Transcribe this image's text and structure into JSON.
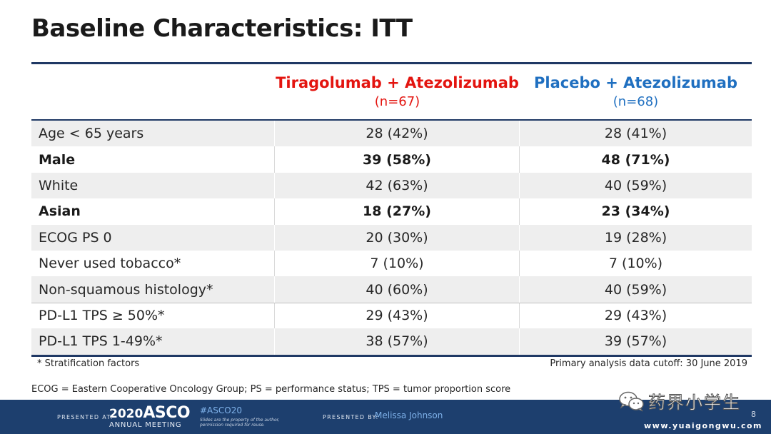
{
  "slide": {
    "title": "Baseline Characteristics: ITT",
    "columns": [
      {
        "name": "Tiragolumab + Atezolizumab",
        "n": "(n=67)",
        "color": "#e3140f"
      },
      {
        "name": "Placebo + Atezolizumab",
        "n": "(n=68)",
        "color": "#1f6fc0"
      }
    ],
    "rows": [
      {
        "label": "Age < 65 years",
        "v1": "28 (42%)",
        "v2": "28 (41%)"
      },
      {
        "label": "Male",
        "v1": "39 (58%)",
        "v2": "48 (71%)"
      },
      {
        "label": "White",
        "v1": "42 (63%)",
        "v2": "40 (59%)"
      },
      {
        "label": "Asian",
        "v1": "18 (27%)",
        "v2": "23 (34%)"
      },
      {
        "label": "ECOG PS 0",
        "v1": "20 (30%)",
        "v2": "19 (28%)"
      },
      {
        "label": "Never used tobacco*",
        "v1": "7 (10%)",
        "v2": "7 (10%)"
      },
      {
        "label": "Non-squamous histology*",
        "v1": "40 (60%)",
        "v2": "40 (59%)"
      },
      {
        "label": "PD-L1 TPS ≥ 50%*",
        "v1": "29 (43%)",
        "v2": "29 (43%)"
      },
      {
        "label": "PD-L1 TPS 1-49%*",
        "v1": "38 (57%)",
        "v2": "39 (57%)"
      }
    ],
    "footnote_left": "* Stratification factors",
    "footnote_right": "Primary analysis data cutoff: 30 June 2019",
    "abbreviations": "ECOG = Eastern Cooperative Oncology Group; PS = performance status; TPS = tumor proportion score"
  },
  "footer": {
    "presented_at": "PRESENTED AT:",
    "year": "2020",
    "asco": "ASCO",
    "meeting": "ANNUAL MEETING",
    "hashtag": "#ASCO20",
    "disclaimer": "Slides are the property of the author, permission required for reuse.",
    "presented_by": "PRESENTED BY:",
    "presenter": "Melissa Johnson",
    "page": "8",
    "website": "www.yuaigongwu.com",
    "background_color": "#1d3f6e"
  },
  "watermark": {
    "text": "药界小学生",
    "icon": "wechat-icon"
  }
}
